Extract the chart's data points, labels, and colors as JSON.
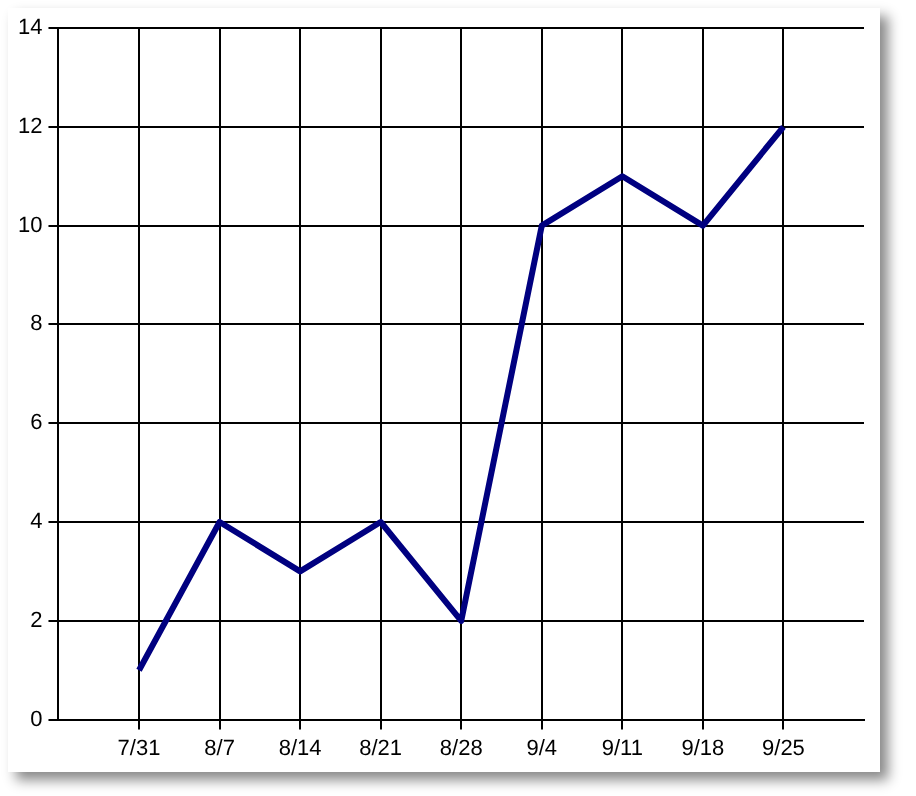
{
  "chart_data": {
    "type": "line",
    "categories": [
      "7/31",
      "8/7",
      "8/14",
      "8/21",
      "8/28",
      "9/4",
      "9/11",
      "9/18",
      "9/25"
    ],
    "series": [
      {
        "color": "#000080",
        "values": [
          1,
          4,
          3,
          4,
          2,
          10,
          11,
          10,
          12
        ]
      }
    ],
    "ylim": [
      0,
      14
    ],
    "yticks": [
      0,
      2,
      4,
      6,
      8,
      10,
      12,
      14
    ],
    "grid": true,
    "legend": false,
    "marker": "none",
    "line_style": "solid"
  }
}
